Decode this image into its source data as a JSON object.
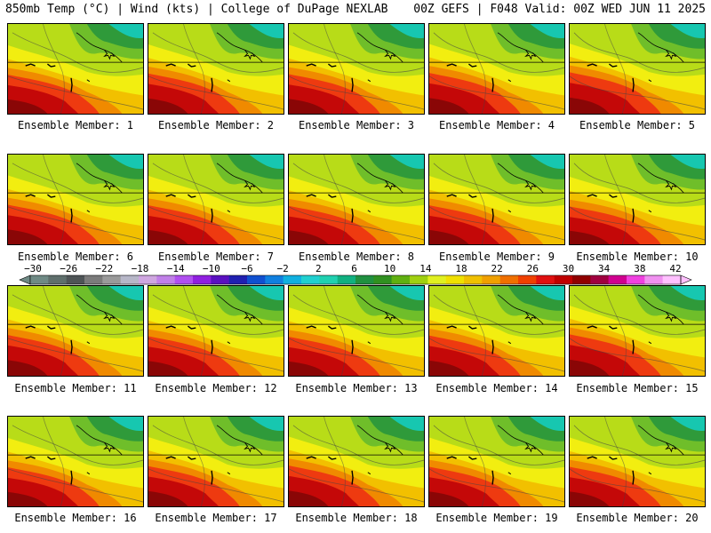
{
  "header": {
    "title_left": "850mb Temp (°C) | Wind (kts) | College of DuPage NEXLAB",
    "title_right": "00Z GEFS | F048 Valid: 00Z WED JUN 11 2025"
  },
  "members": [
    {
      "label": "Ensemble Member: 1",
      "hot": 0.55
    },
    {
      "label": "Ensemble Member: 2",
      "hot": 0.65
    },
    {
      "label": "Ensemble Member: 3",
      "hot": 0.6
    },
    {
      "label": "Ensemble Member: 4",
      "hot": 0.7
    },
    {
      "label": "Ensemble Member: 5",
      "hot": 0.75
    },
    {
      "label": "Ensemble Member: 6",
      "hot": 0.6
    },
    {
      "label": "Ensemble Member: 7",
      "hot": 0.55
    },
    {
      "label": "Ensemble Member: 8",
      "hot": 0.5
    },
    {
      "label": "Ensemble Member: 9",
      "hot": 0.55
    },
    {
      "label": "Ensemble Member: 10",
      "hot": 0.45
    },
    {
      "label": "Ensemble Member: 11",
      "hot": 0.7
    },
    {
      "label": "Ensemble Member: 12",
      "hot": 0.6
    },
    {
      "label": "Ensemble Member: 13",
      "hot": 0.55
    },
    {
      "label": "Ensemble Member: 14",
      "hot": 0.65
    },
    {
      "label": "Ensemble Member: 15",
      "hot": 0.75
    },
    {
      "label": "Ensemble Member: 16",
      "hot": 0.55
    },
    {
      "label": "Ensemble Member: 17",
      "hot": 0.65
    },
    {
      "label": "Ensemble Member: 18",
      "hot": 0.7
    },
    {
      "label": "Ensemble Member: 19",
      "hot": 0.6
    },
    {
      "label": "Ensemble Member: 20",
      "hot": 0.6
    }
  ],
  "colorbar": {
    "tick_labels": [
      "−30",
      "−26",
      "−22",
      "−18",
      "−14",
      "−10",
      "−6",
      "−2",
      "2",
      "6",
      "10",
      "14",
      "18",
      "22",
      "26",
      "30",
      "34",
      "38",
      "42"
    ],
    "colors": [
      "#6f8a85",
      "#5f6f6c",
      "#4e5456",
      "#7b7b7b",
      "#9a9a9a",
      "#b7b7c8",
      "#cfa6e0",
      "#c080e8",
      "#b050f0",
      "#9020e0",
      "#5a10c0",
      "#2020b0",
      "#1050d0",
      "#1080e0",
      "#10b0e0",
      "#20d0d0",
      "#20d0b0",
      "#10b080",
      "#209040",
      "#309020",
      "#60b010",
      "#a0d010",
      "#e0f020",
      "#f0e000",
      "#f0c000",
      "#f0a000",
      "#f07000",
      "#f04000",
      "#e01010",
      "#c00000",
      "#900000",
      "#a00040",
      "#d00090",
      "#f040e0",
      "#f090f0",
      "#ffc0ff"
    ]
  }
}
